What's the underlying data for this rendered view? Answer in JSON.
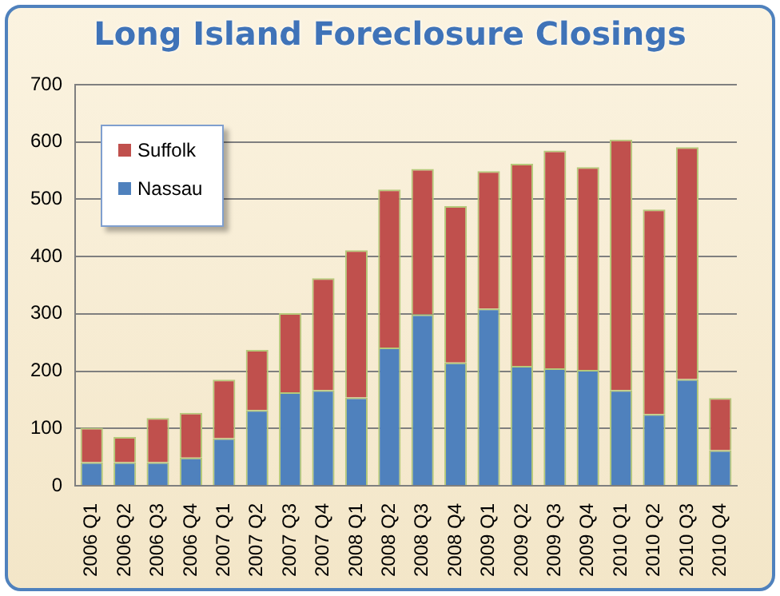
{
  "chart_data": {
    "type": "bar",
    "title": "Long Island Foreclosure Closings",
    "stacked": true,
    "categories": [
      "2006 Q1",
      "2006 Q2",
      "2006 Q3",
      "2006 Q4",
      "2007 Q1",
      "2007 Q2",
      "2007 Q3",
      "2007 Q4",
      "2008 Q1",
      "2008 Q2",
      "2008 Q3",
      "2008 Q4",
      "2009 Q1",
      "2009 Q2",
      "2009 Q3",
      "2009 Q4",
      "2010 Q1",
      "2010 Q2",
      "2010 Q3",
      "2010 Q4"
    ],
    "series": [
      {
        "name": "Nassau",
        "color": "#4f81bd",
        "values": [
          41,
          41,
          41,
          49,
          83,
          132,
          163,
          167,
          154,
          241,
          299,
          215,
          309,
          209,
          205,
          202,
          167,
          125,
          186,
          62
        ]
      },
      {
        "name": "Suffolk",
        "color": "#c0504d",
        "values": [
          60,
          44,
          77,
          78,
          102,
          105,
          138,
          195,
          257,
          276,
          254,
          273,
          240,
          353,
          380,
          354,
          437,
          357,
          405,
          91
        ]
      }
    ],
    "ylim": [
      0,
      700
    ],
    "yticks": [
      0,
      100,
      200,
      300,
      400,
      500,
      600,
      700
    ],
    "grid": "y",
    "legend": "top left"
  }
}
